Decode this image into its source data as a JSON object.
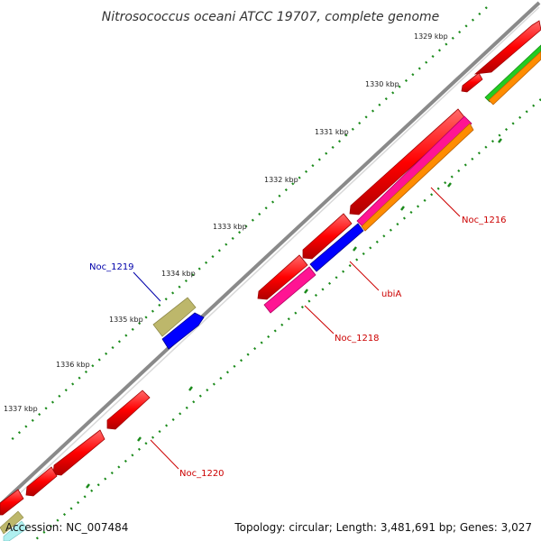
{
  "title": "Nitrosococcus oceani ATCC 19707, complete genome",
  "footer": {
    "accession": "Accession: NC_007484",
    "stats": "Topology: circular; Length: 3,481,691 bp; Genes: 3,027"
  },
  "ticks": [
    "1329 kbp",
    "1330 kbp",
    "1331 kbp",
    "1332 kbp",
    "1333 kbp",
    "1334 kbp",
    "1335 kbp",
    "1336 kbp",
    "1337 kbp"
  ],
  "gene_labels": [
    {
      "text": "Noc_1216",
      "color": "#cc0000"
    },
    {
      "text": "ubiA",
      "color": "#cc0000"
    },
    {
      "text": "Noc_1218",
      "color": "#cc0000"
    },
    {
      "text": "Noc_1219",
      "color": "#0000aa"
    },
    {
      "text": "Noc_1220",
      "color": "#cc0000"
    }
  ],
  "colors": {
    "backbone": "#808080",
    "cds": "#ff0000",
    "rrna_like": "#ff1493",
    "blue": "#0000ff",
    "orange": "#ff8c00",
    "green": "#22cc22",
    "khaki": "#bdb76b",
    "tick_marks": "#1a8a1a"
  }
}
